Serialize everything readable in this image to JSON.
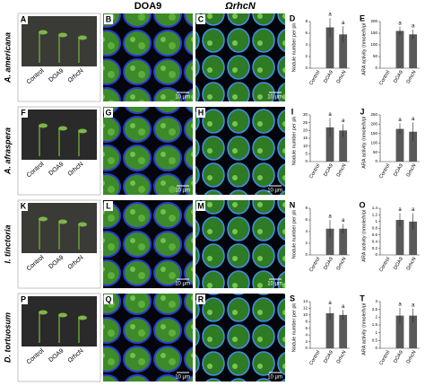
{
  "columns": {
    "left": "DOA9",
    "right": "ΩrhcN"
  },
  "rows": [
    {
      "species": "A. americana",
      "panels": [
        "A",
        "B",
        "C",
        "D",
        "E"
      ],
      "photo_labels": [
        "Control",
        "DOA9",
        "ΩrhcN"
      ],
      "scale_bars": [
        "10 µm",
        "10 µm"
      ]
    },
    {
      "species": "A. afraspera",
      "panels": [
        "F",
        "G",
        "H",
        "I",
        "J"
      ],
      "photo_labels": [
        "Control",
        "DOA9",
        "ΩrhcN"
      ],
      "scale_bars": [
        "10 µm",
        "10 µm"
      ]
    },
    {
      "species": "I. tinctoria",
      "panels": [
        "K",
        "L",
        "M",
        "N",
        "O"
      ],
      "photo_labels": [
        "Control",
        "DOA9",
        "ΩrhcN"
      ],
      "scale_bars": [
        "10 µm",
        "10 µm"
      ]
    },
    {
      "species": "D. tortuosum",
      "panels": [
        "P",
        "Q",
        "R",
        "S",
        "T"
      ],
      "photo_labels": [
        "Control",
        "DOA9",
        "ΩrhcN"
      ],
      "scale_bars": [
        "10 µm",
        "10 µm"
      ]
    }
  ],
  "chart_data": [
    {
      "type": "bar",
      "y_label": "Nodule number per plant",
      "categories": [
        "Control",
        "DOA9",
        "ΩrhcN"
      ],
      "values": [
        0,
        7,
        5.8
      ],
      "errors": [
        0,
        1.6,
        1.4
      ],
      "annotations": [
        null,
        "a",
        "a"
      ],
      "color": "#595959",
      "ylim": [
        0,
        8
      ],
      "yticks": [
        0,
        2,
        4,
        6,
        8
      ]
    },
    {
      "type": "bar",
      "y_label": "ARA activity (nmole/h/plant)",
      "categories": [
        "Control",
        "DOA9",
        "ΩrhcN"
      ],
      "values": [
        0,
        160,
        145
      ],
      "errors": [
        0,
        18,
        20
      ],
      "annotations": [
        null,
        "a",
        "a"
      ],
      "color": "#595959",
      "ylim": [
        0,
        200
      ],
      "yticks": [
        0,
        50,
        100,
        150,
        200
      ]
    },
    {
      "type": "bar",
      "y_label": "Nodule number per plant",
      "categories": [
        "Control",
        "DOA9",
        "ΩrhcN"
      ],
      "values": [
        0,
        22,
        20
      ],
      "errors": [
        0,
        6,
        4
      ],
      "annotations": [
        null,
        "a",
        "a"
      ],
      "color": "#595959",
      "ylim": [
        0,
        30
      ],
      "yticks": [
        0,
        5,
        10,
        15,
        20,
        25,
        30
      ]
    },
    {
      "type": "bar",
      "y_label": "ARA activity (nmole/h/plant)",
      "categories": [
        "Control",
        "DOA9",
        "ΩrhcN"
      ],
      "values": [
        0,
        175,
        160
      ],
      "errors": [
        0,
        30,
        50
      ],
      "annotations": [
        null,
        "a",
        "a"
      ],
      "color": "#595959",
      "ylim": [
        0,
        250
      ],
      "yticks": [
        0,
        50,
        100,
        150,
        200,
        250
      ]
    },
    {
      "type": "bar",
      "y_label": "Nodule number per plant",
      "categories": [
        "Control",
        "DOA9",
        "ΩrhcN"
      ],
      "values": [
        0,
        4.5,
        4.5
      ],
      "errors": [
        0,
        1.5,
        0.8
      ],
      "annotations": [
        null,
        "a",
        "a"
      ],
      "color": "#595959",
      "ylim": [
        0,
        8
      ],
      "yticks": [
        0,
        2,
        4,
        6,
        8
      ]
    },
    {
      "type": "bar",
      "y_label": "ARA activity (nmole/h/plant)",
      "categories": [
        "Control",
        "DOA9",
        "ΩrhcN"
      ],
      "values": [
        0,
        1.05,
        1.0
      ],
      "errors": [
        0,
        0.2,
        0.25
      ],
      "annotations": [
        null,
        "a",
        "a"
      ],
      "color": "#595959",
      "ylim": [
        0,
        1.4
      ],
      "yticks": [
        0,
        0.2,
        0.4,
        0.6,
        0.8,
        1,
        1.2,
        1.4
      ]
    },
    {
      "type": "bar",
      "y_label": "Nodule number per plant",
      "categories": [
        "Control",
        "DOA9",
        "ΩrhcN"
      ],
      "values": [
        0,
        10.5,
        10
      ],
      "errors": [
        0,
        2,
        1.5
      ],
      "annotations": [
        null,
        "a",
        "a"
      ],
      "color": "#595959",
      "ylim": [
        0,
        14
      ],
      "yticks": [
        0,
        2,
        4,
        6,
        8,
        10,
        12,
        14
      ]
    },
    {
      "type": "bar",
      "y_label": "ARA activity (nmole/h/plant)",
      "categories": [
        "Control",
        "DOA9",
        "ΩrhcN"
      ],
      "values": [
        0,
        2.1,
        2.1
      ],
      "errors": [
        0,
        0.5,
        0.45
      ],
      "annotations": [
        null,
        "a",
        "a"
      ],
      "color": "#595959",
      "ylim": [
        0,
        3
      ],
      "yticks": [
        0,
        0.5,
        1,
        1.5,
        2,
        2.5,
        3
      ]
    }
  ]
}
